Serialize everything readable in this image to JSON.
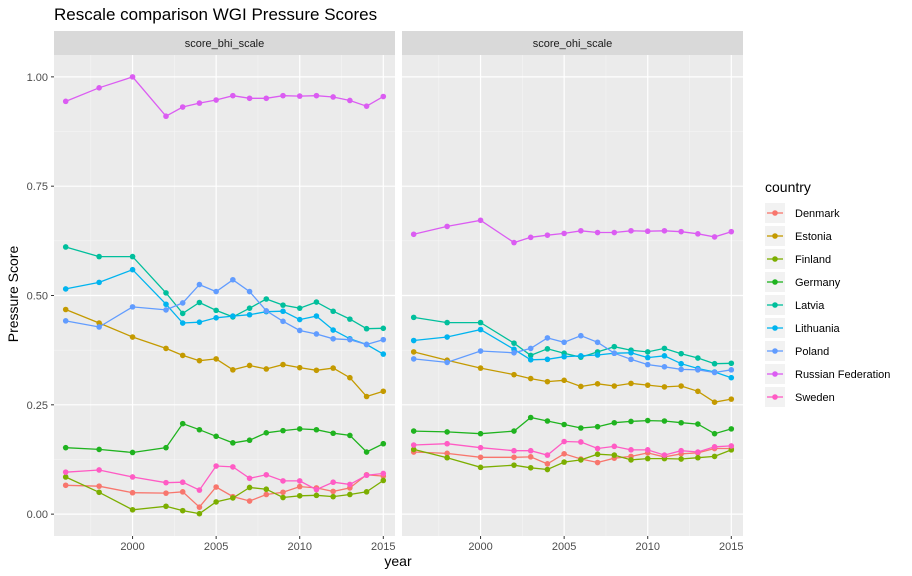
{
  "chart_data": {
    "type": "line",
    "title": "Rescale comparison WGI Pressure Scores",
    "xlabel": "year",
    "ylabel": "Pressure Score",
    "xlim": [
      1995.3,
      2015.7
    ],
    "ylim": [
      -0.05,
      1.05
    ],
    "x_ticks": [
      2000,
      2005,
      2010,
      2015
    ],
    "y_ticks": [
      0.0,
      0.25,
      0.5,
      0.75,
      1.0
    ],
    "x_tick_labels": [
      "2000",
      "2005",
      "2010",
      "2015"
    ],
    "y_tick_labels": [
      "0.00",
      "0.25",
      "0.50",
      "0.75",
      "1.00"
    ],
    "legend": {
      "title": "country",
      "position": "right"
    },
    "x": [
      1996,
      1998,
      2000,
      2002,
      2003,
      2004,
      2005,
      2006,
      2007,
      2008,
      2009,
      2010,
      2011,
      2012,
      2013,
      2014,
      2015
    ],
    "panels": [
      {
        "strip": "score_bhi_scale",
        "series": [
          {
            "name": "Denmark",
            "color": "#F8766D",
            "values": [
              0.066,
              0.064,
              0.049,
              0.048,
              0.051,
              0.016,
              0.062,
              0.04,
              0.03,
              0.045,
              0.05,
              0.063,
              0.06,
              0.052,
              0.06,
              0.09,
              0.087
            ]
          },
          {
            "name": "Estonia",
            "color": "#C49A00",
            "values": [
              0.468,
              0.437,
              0.405,
              0.379,
              0.363,
              0.351,
              0.355,
              0.33,
              0.34,
              0.332,
              0.342,
              0.335,
              0.329,
              0.334,
              0.312,
              0.269,
              0.281
            ]
          },
          {
            "name": "Finland",
            "color": "#7CAE00",
            "values": [
              0.085,
              0.05,
              0.01,
              0.018,
              0.008,
              0.001,
              0.028,
              0.037,
              0.061,
              0.057,
              0.038,
              0.042,
              0.043,
              0.04,
              0.045,
              0.051,
              0.077
            ]
          },
          {
            "name": "Germany",
            "color": "#1FB31F",
            "values": [
              0.152,
              0.148,
              0.141,
              0.152,
              0.207,
              0.193,
              0.178,
              0.163,
              0.169,
              0.186,
              0.191,
              0.195,
              0.193,
              0.185,
              0.18,
              0.142,
              0.161
            ]
          },
          {
            "name": "Latvia",
            "color": "#00BF9C",
            "values": [
              0.611,
              0.589,
              0.589,
              0.506,
              0.459,
              0.484,
              0.466,
              0.451,
              0.471,
              0.492,
              0.478,
              0.471,
              0.485,
              0.464,
              0.446,
              0.424,
              0.425
            ]
          },
          {
            "name": "Lithuania",
            "color": "#00B4EF",
            "values": [
              0.515,
              0.53,
              0.559,
              0.48,
              0.437,
              0.439,
              0.449,
              0.453,
              0.456,
              0.463,
              0.464,
              0.445,
              0.453,
              0.421,
              0.401,
              0.388,
              0.366
            ]
          },
          {
            "name": "Poland",
            "color": "#619CFF",
            "values": [
              0.442,
              0.428,
              0.474,
              0.467,
              0.483,
              0.525,
              0.509,
              0.536,
              0.509,
              0.465,
              0.441,
              0.42,
              0.412,
              0.401,
              0.399,
              0.388,
              0.399
            ]
          },
          {
            "name": "Russian Federation",
            "color": "#DB5CF2",
            "values": [
              0.944,
              0.975,
              1.0,
              0.91,
              0.931,
              0.94,
              0.947,
              0.957,
              0.951,
              0.951,
              0.957,
              0.956,
              0.957,
              0.954,
              0.946,
              0.933,
              0.955
            ]
          },
          {
            "name": "Sweden",
            "color": "#FF5BC4",
            "values": [
              0.096,
              0.101,
              0.085,
              0.072,
              0.073,
              0.055,
              0.11,
              0.108,
              0.082,
              0.09,
              0.076,
              0.076,
              0.056,
              0.073,
              0.068,
              0.089,
              0.093
            ]
          }
        ]
      },
      {
        "strip": "score_ohi_scale",
        "series": [
          {
            "name": "Denmark",
            "color": "#F8766D",
            "values": [
              0.142,
              0.139,
              0.13,
              0.13,
              0.131,
              0.115,
              0.138,
              0.126,
              0.118,
              0.128,
              0.132,
              0.14,
              0.131,
              0.138,
              0.14,
              0.15,
              0.15
            ]
          },
          {
            "name": "Estonia",
            "color": "#C49A00",
            "values": [
              0.371,
              0.352,
              0.334,
              0.319,
              0.31,
              0.303,
              0.306,
              0.292,
              0.298,
              0.293,
              0.299,
              0.295,
              0.291,
              0.293,
              0.281,
              0.256,
              0.263
            ]
          },
          {
            "name": "Finland",
            "color": "#7CAE00",
            "values": [
              0.148,
              0.129,
              0.107,
              0.112,
              0.106,
              0.102,
              0.119,
              0.124,
              0.137,
              0.135,
              0.124,
              0.127,
              0.127,
              0.126,
              0.129,
              0.132,
              0.147
            ]
          },
          {
            "name": "Germany",
            "color": "#1FB31F",
            "values": [
              0.19,
              0.188,
              0.184,
              0.19,
              0.221,
              0.213,
              0.205,
              0.197,
              0.2,
              0.209,
              0.212,
              0.214,
              0.213,
              0.209,
              0.206,
              0.184,
              0.195
            ]
          },
          {
            "name": "Latvia",
            "color": "#00BF9C",
            "values": [
              0.45,
              0.438,
              0.438,
              0.391,
              0.363,
              0.378,
              0.368,
              0.359,
              0.371,
              0.383,
              0.375,
              0.371,
              0.379,
              0.367,
              0.357,
              0.344,
              0.345
            ]
          },
          {
            "name": "Lithuania",
            "color": "#00B4EF",
            "values": [
              0.397,
              0.405,
              0.422,
              0.377,
              0.353,
              0.354,
              0.36,
              0.362,
              0.364,
              0.368,
              0.369,
              0.358,
              0.362,
              0.344,
              0.333,
              0.325,
              0.312
            ]
          },
          {
            "name": "Poland",
            "color": "#619CFF",
            "values": [
              0.355,
              0.347,
              0.373,
              0.369,
              0.379,
              0.403,
              0.393,
              0.408,
              0.393,
              0.368,
              0.354,
              0.342,
              0.337,
              0.331,
              0.33,
              0.324,
              0.33
            ]
          },
          {
            "name": "Russian Federation",
            "color": "#DB5CF2",
            "values": [
              0.64,
              0.658,
              0.672,
              0.621,
              0.633,
              0.638,
              0.642,
              0.648,
              0.644,
              0.644,
              0.648,
              0.647,
              0.648,
              0.646,
              0.641,
              0.634,
              0.646
            ]
          },
          {
            "name": "Sweden",
            "color": "#FF5BC4",
            "values": [
              0.158,
              0.161,
              0.152,
              0.145,
              0.145,
              0.135,
              0.166,
              0.165,
              0.15,
              0.155,
              0.147,
              0.147,
              0.135,
              0.145,
              0.142,
              0.154,
              0.156
            ]
          }
        ]
      }
    ]
  }
}
